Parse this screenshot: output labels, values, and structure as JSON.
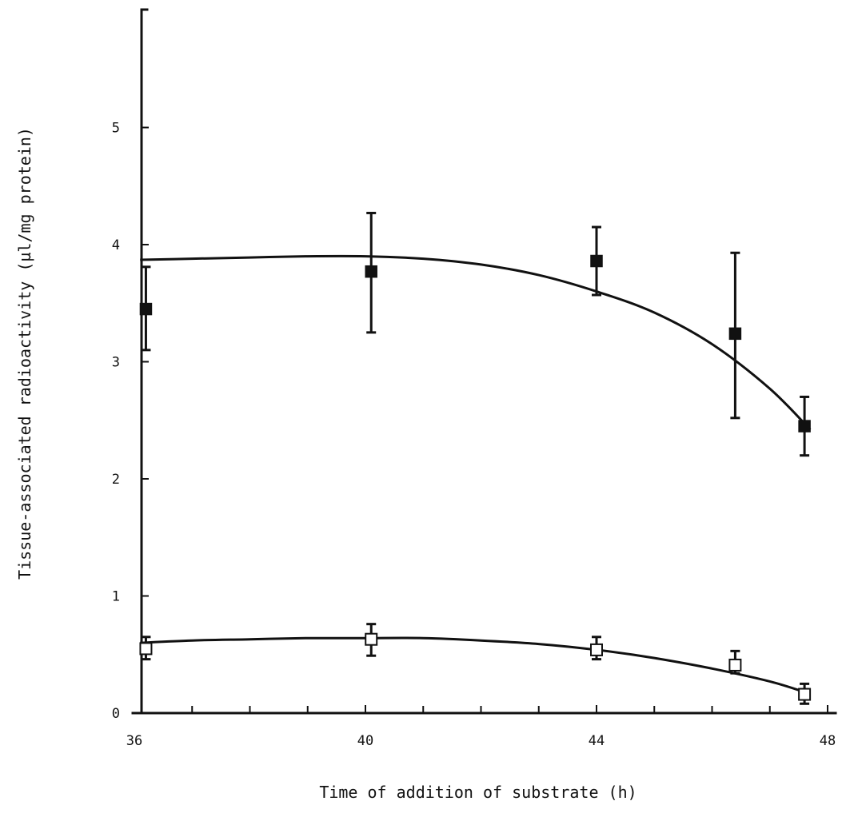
{
  "chart_data": {
    "type": "scatter",
    "title": "",
    "xlabel": "Time of addition of substrate (h)",
    "ylabel": "Tissue-associated radioactivity (µl/mg protein)",
    "xlim": [
      36,
      48
    ],
    "ylim": [
      0,
      6
    ],
    "x_ticks_major": [
      36,
      40,
      44,
      48
    ],
    "x_tick_labels": [
      "36",
      "40",
      "44",
      "48"
    ],
    "x_ticks_minor": [
      37,
      38,
      39,
      41,
      42,
      43,
      45,
      46,
      47
    ],
    "y_ticks": [
      0,
      1,
      2,
      3,
      4,
      5
    ],
    "y_tick_labels": [
      "0",
      "1",
      "2",
      "3",
      "4",
      "5"
    ],
    "grid": false,
    "legend": "none",
    "series": [
      {
        "marker": "filled-square",
        "x": [
          36.2,
          40.1,
          44.0,
          46.4,
          47.6
        ],
        "y": [
          3.45,
          3.77,
          3.86,
          3.24,
          2.45
        ],
        "err_low": [
          3.1,
          3.25,
          3.57,
          2.52,
          2.2
        ],
        "err_high": [
          3.81,
          4.27,
          4.15,
          3.93,
          2.7
        ],
        "fit_curve": {
          "x": [
            36.1,
            37,
            38,
            39,
            40,
            41,
            42,
            43,
            44,
            45,
            46,
            47,
            47.7
          ],
          "y": [
            3.87,
            3.88,
            3.89,
            3.9,
            3.9,
            3.88,
            3.83,
            3.74,
            3.6,
            3.42,
            3.15,
            2.77,
            2.42
          ]
        }
      },
      {
        "marker": "open-square",
        "x": [
          36.2,
          40.1,
          44.0,
          46.4,
          47.6
        ],
        "y": [
          0.55,
          0.63,
          0.54,
          0.41,
          0.16
        ],
        "err_low": [
          0.46,
          0.49,
          0.46,
          0.34,
          0.08
        ],
        "err_high": [
          0.65,
          0.76,
          0.65,
          0.53,
          0.25
        ],
        "fit_curve": {
          "x": [
            36.1,
            37,
            38,
            39,
            40,
            41,
            42,
            43,
            44,
            45,
            46,
            47,
            47.6
          ],
          "y": [
            0.6,
            0.62,
            0.63,
            0.64,
            0.64,
            0.64,
            0.62,
            0.59,
            0.54,
            0.47,
            0.38,
            0.27,
            0.18
          ]
        }
      }
    ]
  }
}
